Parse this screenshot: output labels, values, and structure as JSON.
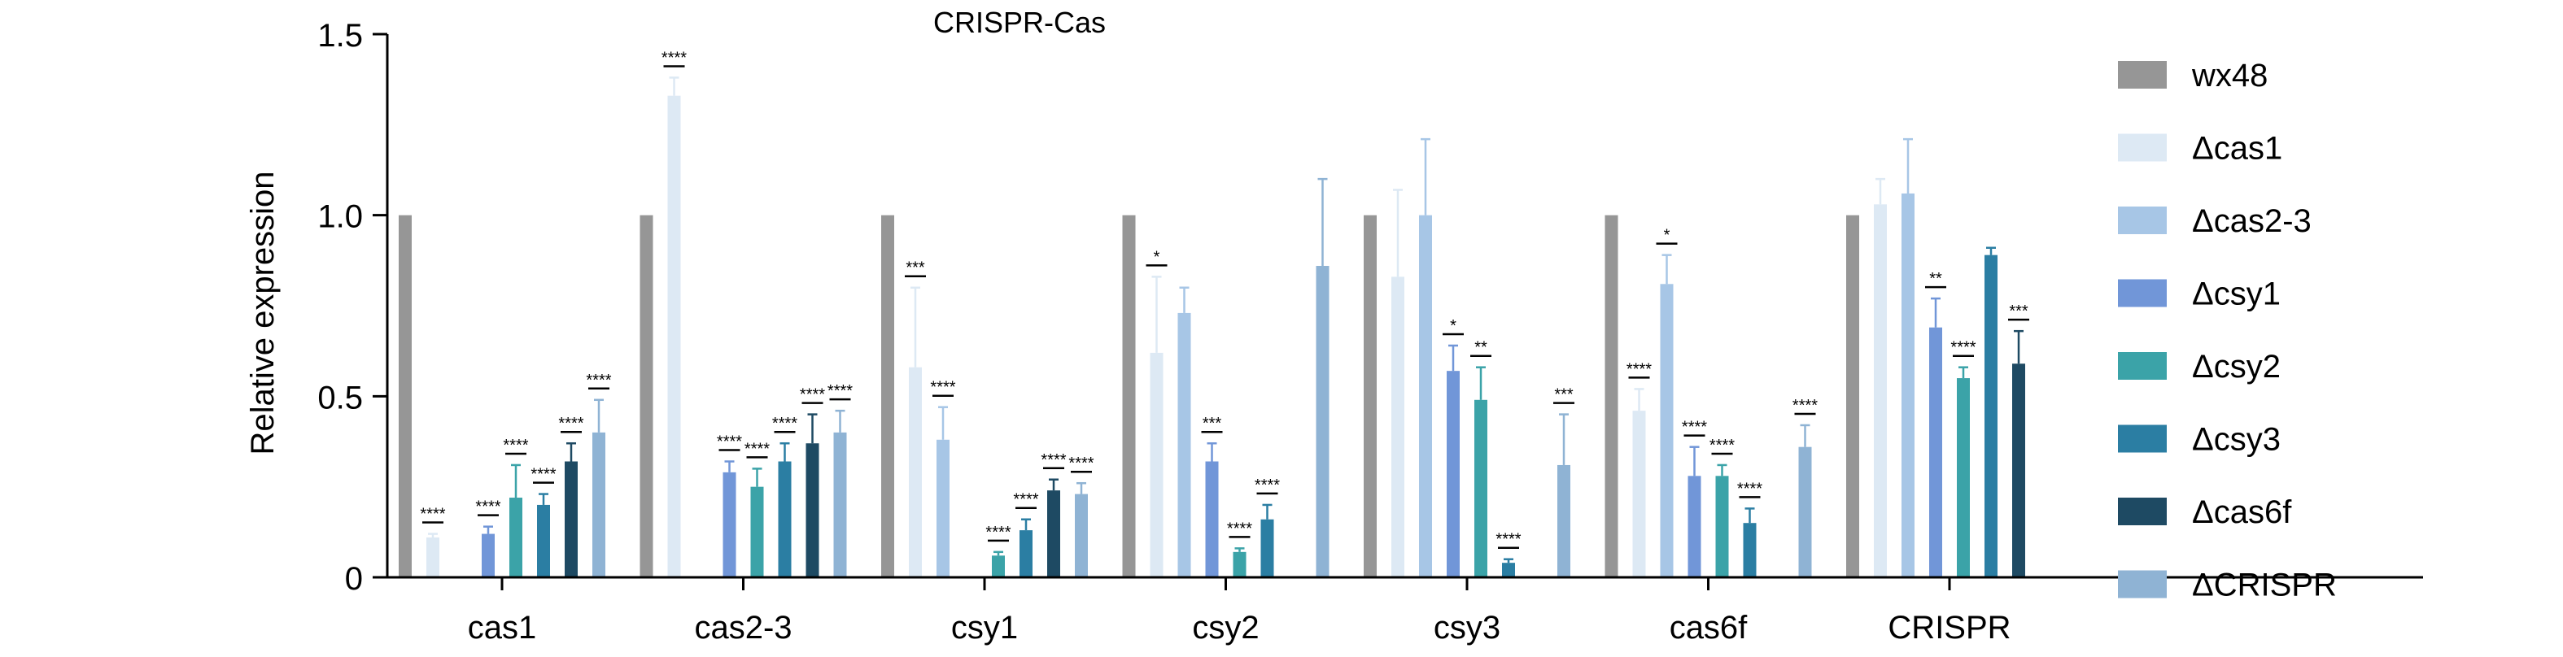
{
  "chart_data": {
    "type": "bar",
    "title": "CRISPR-Cas",
    "xlabel": "",
    "ylabel": "Relative expression",
    "ylim": [
      0,
      1.5
    ],
    "yticks": [
      0,
      0.5,
      1.0,
      1.5
    ],
    "ytick_labels": [
      "0",
      "0.5",
      "1.0",
      "1.5"
    ],
    "grid": false,
    "legend_position": "right",
    "categories": [
      "cas1",
      "cas2-3",
      "csy1",
      "csy2",
      "csy3",
      "cas6f",
      "CRISPR"
    ],
    "series": [
      {
        "name": "wx48",
        "color": "#969696",
        "values": [
          1.0,
          1.0,
          1.0,
          1.0,
          1.0,
          1.0,
          1.0
        ],
        "errors": [
          0,
          0,
          0,
          0,
          0,
          0,
          0
        ],
        "significance": [
          "",
          "",
          "",
          "",
          "",
          "",
          ""
        ]
      },
      {
        "name": "Δcas1",
        "color": "#dde9f4",
        "values": [
          0.11,
          1.33,
          0.58,
          0.62,
          0.83,
          0.46,
          1.03
        ],
        "errors": [
          0.01,
          0.05,
          0.22,
          0.21,
          0.24,
          0.06,
          0.07
        ],
        "significance": [
          "****",
          "****",
          "***",
          "*",
          "",
          "****",
          ""
        ]
      },
      {
        "name": "Δcas2-3",
        "color": "#a7c6e6",
        "values": [
          0.0,
          0.0,
          0.38,
          0.73,
          1.0,
          0.81,
          1.06
        ],
        "errors": [
          0,
          0,
          0.09,
          0.07,
          0.21,
          0.08,
          0.15
        ],
        "significance": [
          "",
          "",
          "****",
          "",
          "",
          "*",
          ""
        ]
      },
      {
        "name": "Δcsy1",
        "color": "#7196d8",
        "values": [
          0.12,
          0.29,
          0.0,
          0.32,
          0.57,
          0.28,
          0.69
        ],
        "errors": [
          0.02,
          0.03,
          0,
          0.05,
          0.07,
          0.08,
          0.08
        ],
        "significance": [
          "****",
          "****",
          "",
          "***",
          "*",
          "****",
          "**"
        ]
      },
      {
        "name": "Δcsy2",
        "color": "#3ba3a8",
        "values": [
          0.22,
          0.25,
          0.06,
          0.07,
          0.49,
          0.28,
          0.55
        ],
        "errors": [
          0.09,
          0.05,
          0.01,
          0.01,
          0.09,
          0.03,
          0.03
        ],
        "significance": [
          "****",
          "****",
          "****",
          "****",
          "**",
          "****",
          "****"
        ]
      },
      {
        "name": "Δcsy3",
        "color": "#2b7ea3",
        "values": [
          0.2,
          0.32,
          0.13,
          0.16,
          0.04,
          0.15,
          0.89
        ],
        "errors": [
          0.03,
          0.05,
          0.03,
          0.04,
          0.01,
          0.04,
          0.02
        ],
        "significance": [
          "****",
          "****",
          "****",
          "****",
          "****",
          "****",
          ""
        ]
      },
      {
        "name": "Δcas6f",
        "color": "#1e4a63",
        "values": [
          0.32,
          0.37,
          0.24,
          0.0,
          0.0,
          0.0,
          0.59
        ],
        "errors": [
          0.05,
          0.08,
          0.03,
          0,
          0,
          0,
          0.09
        ],
        "significance": [
          "****",
          "****",
          "****",
          "",
          "",
          "",
          "***"
        ]
      },
      {
        "name": "ΔCRISPR",
        "color": "#8fb3d4",
        "values": [
          0.4,
          0.4,
          0.23,
          0.86,
          0.31,
          0.36,
          0.0
        ],
        "errors": [
          0.09,
          0.06,
          0.03,
          0.24,
          0.14,
          0.06,
          0
        ],
        "significance": [
          "****",
          "****",
          "****",
          "",
          "***",
          "****",
          ""
        ]
      }
    ]
  }
}
